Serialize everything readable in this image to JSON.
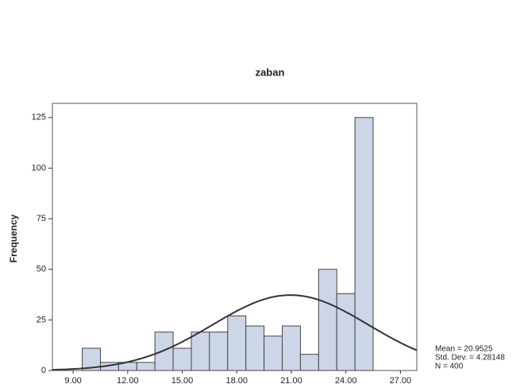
{
  "chart_data": {
    "type": "histogram",
    "title": "zaban",
    "ylabel": "Frequency",
    "bins": [
      9.5,
      10.5,
      11.5,
      12.5,
      13.5,
      14.5,
      15.5,
      16.5,
      17.5,
      18.5,
      19.5,
      20.5,
      21.5,
      22.5,
      23.5,
      24.5,
      25.5
    ],
    "values": [
      11,
      4,
      4,
      4,
      19,
      11,
      19,
      19,
      27,
      22,
      17,
      22,
      8,
      50,
      38,
      125
    ],
    "color": "#cdd6e6",
    "xlim": [
      7.86,
      27.9
    ],
    "ylim": [
      0,
      132
    ],
    "xticks": [
      {
        "value": 9,
        "label": "9.00"
      },
      {
        "value": 12,
        "label": "12.00"
      },
      {
        "value": 15,
        "label": "15.00"
      },
      {
        "value": 18,
        "label": "18.00"
      },
      {
        "value": 21,
        "label": "21.00"
      },
      {
        "value": 24,
        "label": "24.00"
      },
      {
        "value": 27,
        "label": "27.00"
      }
    ],
    "yticks": [
      0,
      25,
      50,
      75,
      100,
      125
    ],
    "normal_curve": {
      "mean": 20.9525,
      "std_dev": 4.28148,
      "n": 400,
      "color": "#333333",
      "labels": [
        "Mean = 20.9525",
        "Std. Dev. = 4.28148",
        "N = 400"
      ]
    }
  }
}
